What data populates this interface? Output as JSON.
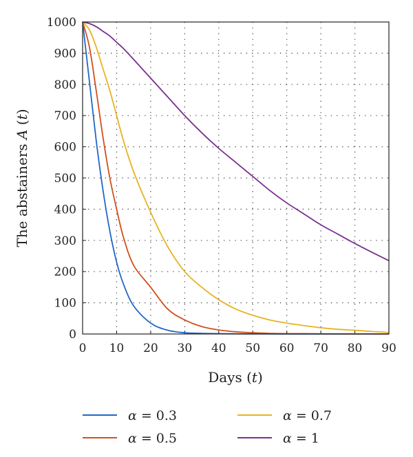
{
  "chart_data": {
    "type": "line",
    "title": "",
    "xlabel_prefix": "Days (",
    "xlabel_var": "t",
    "xlabel_suffix": ")",
    "ylabel_prefix": "The abstainers ",
    "ylabel_var": "A",
    "ylabel_mid": " (",
    "ylabel_var2": "t",
    "ylabel_suffix": ")",
    "xlim": [
      0,
      90
    ],
    "ylim": [
      0,
      1000
    ],
    "xticks": [
      0,
      10,
      20,
      30,
      40,
      50,
      60,
      70,
      80,
      90
    ],
    "yticks": [
      0,
      100,
      200,
      300,
      400,
      500,
      600,
      700,
      800,
      900,
      1000
    ],
    "grid": true,
    "legend_position": "bottom",
    "x": [
      0,
      2,
      4,
      6,
      8,
      10,
      12,
      15,
      20,
      25,
      30,
      35,
      40,
      45,
      50,
      55,
      60,
      65,
      70,
      75,
      80,
      85,
      90
    ],
    "series": [
      {
        "name": "α = 0.3",
        "legend_symbol": "α",
        "legend_value": "= 0.3",
        "color": "#2166c6",
        "values": [
          1000,
          810,
          620,
          460,
          330,
          230,
          160,
          90,
          35,
          12,
          4,
          2,
          1,
          0.5,
          0.3,
          0.2,
          0.1,
          0.1,
          0.1,
          0.05,
          0.05,
          0.05,
          0.05
        ]
      },
      {
        "name": "α = 0.5",
        "legend_symbol": "α",
        "legend_value": "= 0.5",
        "color": "#d14f1a",
        "values": [
          1000,
          920,
          780,
          630,
          500,
          400,
          310,
          220,
          150,
          80,
          45,
          24,
          13,
          7,
          4,
          2,
          1,
          1,
          0.5,
          0.5,
          0.3,
          0.3,
          0.2
        ]
      },
      {
        "name": "α = 0.7",
        "legend_symbol": "α",
        "legend_value": "= 0.7",
        "color": "#e8b21f",
        "values": [
          1000,
          975,
          920,
          850,
          780,
          700,
          620,
          520,
          390,
          280,
          200,
          150,
          110,
          80,
          60,
          45,
          35,
          27,
          20,
          15,
          12,
          8,
          5
        ]
      },
      {
        "name": "α = 1",
        "legend_symbol": "α",
        "legend_value": "= 1",
        "color": "#7b2e8e",
        "values": [
          1000,
          995,
          985,
          970,
          955,
          935,
          915,
          880,
          820,
          760,
          700,
          645,
          595,
          550,
          505,
          460,
          420,
          385,
          350,
          320,
          290,
          262,
          235
        ]
      }
    ]
  }
}
